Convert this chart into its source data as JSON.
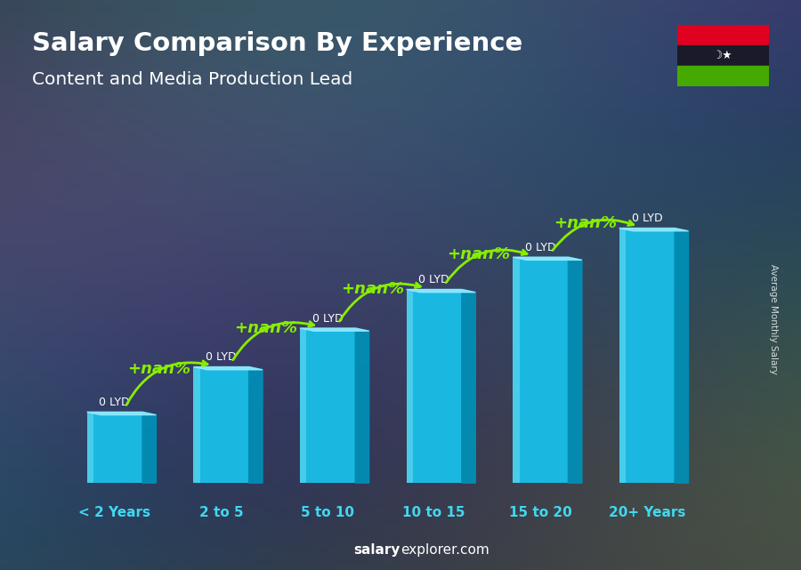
{
  "title_line1": "Salary Comparison By Experience",
  "title_line2": "Content and Media Production Lead",
  "categories": [
    "< 2 Years",
    "2 to 5",
    "5 to 10",
    "10 to 15",
    "15 to 20",
    "20+ Years"
  ],
  "salary_labels": [
    "0 LYD",
    "0 LYD",
    "0 LYD",
    "0 LYD",
    "0 LYD",
    "0 LYD"
  ],
  "pct_labels": [
    "+nan%",
    "+nan%",
    "+nan%",
    "+nan%",
    "+nan%"
  ],
  "heights": [
    2.2,
    3.6,
    4.8,
    6.0,
    7.0,
    7.9
  ],
  "bar_front_color": "#1ab8e0",
  "bar_highlight_color": "#60d8f0",
  "bar_top_color": "#90eaff",
  "bar_side_color": "#0090b8",
  "ylabel_text": "Average Monthly Salary",
  "footer_salary": "salary",
  "footer_rest": "explorer.com",
  "bg_color": "#4a5f72",
  "title_color": "#ffffff",
  "xlabel_color": "#40d8f0",
  "green_color": "#88ee00",
  "arrow_color": "#88ee00",
  "flag_red": "#e00020",
  "flag_black": "#1a1a2a",
  "flag_green": "#44aa00"
}
